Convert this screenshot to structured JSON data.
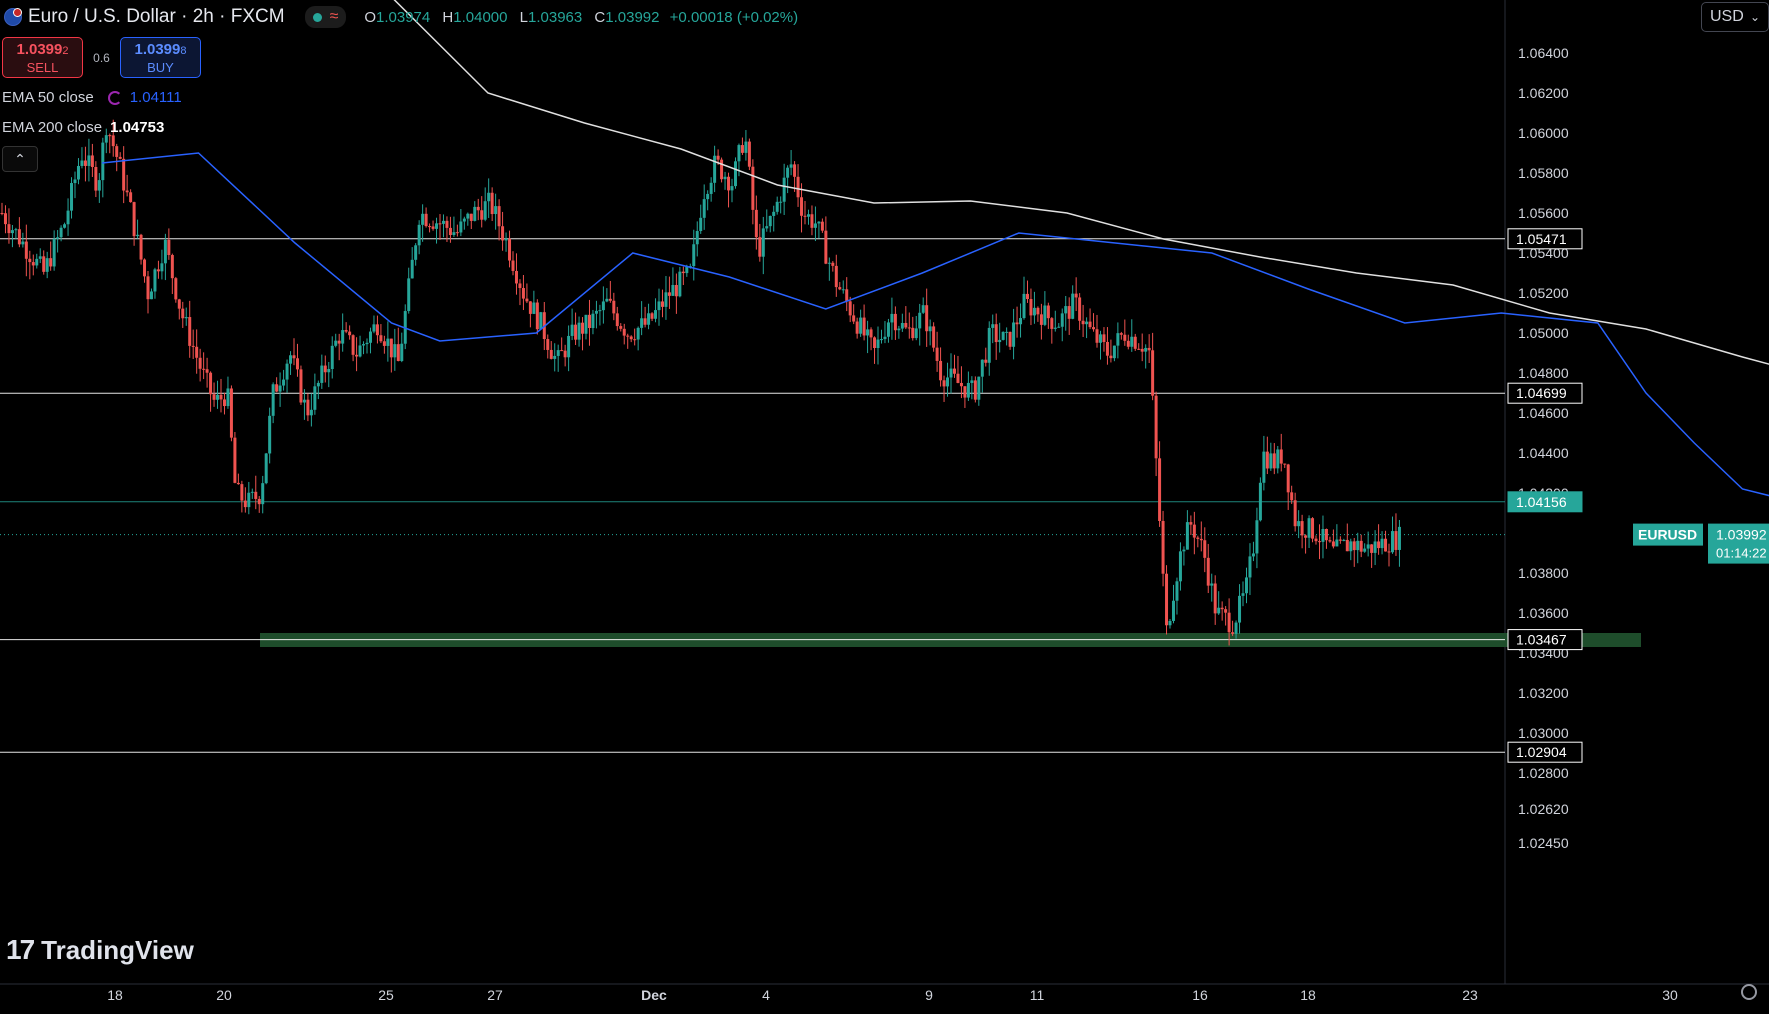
{
  "header": {
    "title": "Euro / U.S. Dollar · 2h · FXCM",
    "ohlc": {
      "open_label": "O",
      "open": "1.03974",
      "high_label": "H",
      "high": "1.04000",
      "low_label": "L",
      "low": "1.03963",
      "close_label": "C",
      "close": "1.03992",
      "change": "+0.00018 (+0.02%)"
    }
  },
  "trade": {
    "sell_price": "1.0399",
    "sell_price_small": "2",
    "sell_label": "SELL",
    "spread": "0.6",
    "buy_price": "1.0399",
    "buy_price_small": "8",
    "buy_label": "BUY"
  },
  "indicators": {
    "ema50": {
      "label": "EMA 50 close",
      "value": "1.04111",
      "color": "#2962ff"
    },
    "ema200": {
      "label": "EMA 200 close",
      "value": "1.04753",
      "color": "#e0e0e0"
    },
    "collapse_icon": "chevron-up-icon"
  },
  "currency_selector": {
    "value": "USD"
  },
  "price_axis": {
    "ticks": [
      "1.06400",
      "1.06200",
      "1.06000",
      "1.05800",
      "1.05600",
      "1.05400",
      "1.05200",
      "1.05000",
      "1.04800",
      "1.04600",
      "1.04400",
      "1.04200",
      "1.03800",
      "1.03600",
      "1.03400",
      "1.03200",
      "1.03000",
      "1.02800",
      "1.02620",
      "1.02450"
    ],
    "level_labels": [
      "1.05471",
      "1.04699",
      "1.04156",
      "1.03467",
      "1.02904"
    ],
    "symbol_badge": "EURUSD",
    "current_price": "1.03992",
    "countdown": "01:14:22"
  },
  "time_axis": {
    "labels": [
      "18",
      "20",
      "25",
      "27",
      "Dec",
      "4",
      "9",
      "11",
      "16",
      "18",
      "23",
      "30"
    ]
  },
  "brand": {
    "name": "TradingView",
    "logo_mark": "17"
  },
  "colors": {
    "up": "#26a69a",
    "down": "#ef5350",
    "ema50": "#2962ff",
    "ema200": "#e0e0e0",
    "support_zone": "#1e4d2b",
    "level_line": "#ffffff",
    "green_level": "#26a69a"
  },
  "chart_data": {
    "type": "candlestick",
    "symbol": "EURUSD",
    "timeframe": "2h",
    "ylim": [
      1.0245,
      1.0645
    ],
    "horizontal_levels": [
      1.05471,
      1.04699,
      1.04156,
      1.03467,
      1.02904
    ],
    "support_zone": [
      1.0343,
      1.035
    ],
    "ema50_anchors": [
      [
        18,
        1.0585
      ],
      [
        20,
        1.059
      ],
      [
        22,
        1.0545
      ],
      [
        24,
        1.0505
      ],
      [
        25,
        1.0496
      ],
      [
        27,
        1.05
      ],
      [
        29,
        1.054
      ],
      [
        31,
        1.0528
      ],
      [
        33,
        1.0512
      ],
      [
        35,
        1.053
      ],
      [
        37,
        1.055
      ],
      [
        39,
        1.0545
      ],
      [
        41,
        1.054
      ],
      [
        43,
        1.0522
      ],
      [
        45,
        1.0505
      ],
      [
        47,
        1.051
      ],
      [
        49,
        1.0505
      ],
      [
        50,
        1.047
      ],
      [
        51,
        1.0445
      ],
      [
        52,
        1.0422
      ],
      [
        53,
        1.0416
      ],
      [
        54,
        1.0412
      ]
    ],
    "ema200_anchors": [
      [
        24,
        1.0668
      ],
      [
        26,
        1.062
      ],
      [
        28,
        1.0605
      ],
      [
        30,
        1.0592
      ],
      [
        32,
        1.0574
      ],
      [
        34,
        1.0565
      ],
      [
        36,
        1.0566
      ],
      [
        38,
        1.056
      ],
      [
        40,
        1.0547
      ],
      [
        42,
        1.0538
      ],
      [
        44,
        1.053
      ],
      [
        46,
        1.0524
      ],
      [
        48,
        1.051
      ],
      [
        50,
        1.0502
      ],
      [
        52,
        1.0488
      ],
      [
        54,
        1.0475
      ]
    ],
    "candle_range_days": [
      17.5,
      54
    ]
  }
}
